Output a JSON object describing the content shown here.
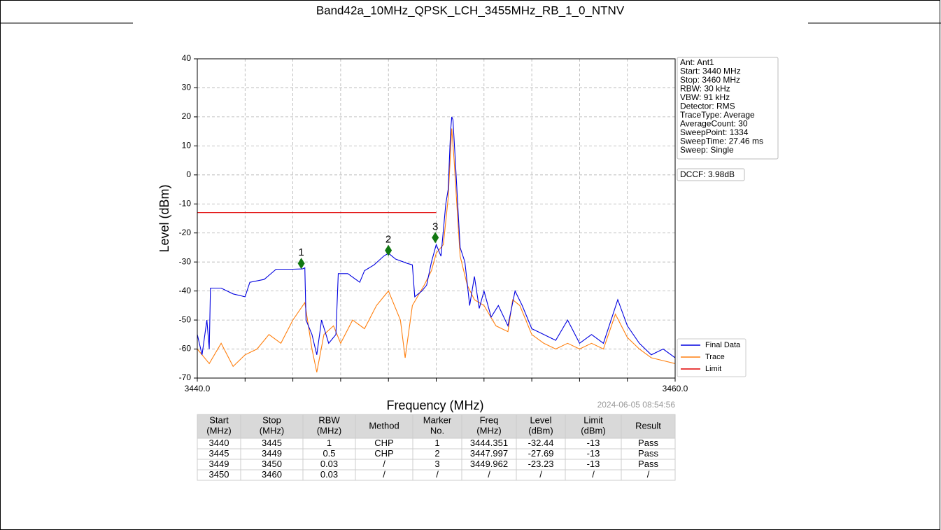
{
  "chart_data": {
    "type": "line",
    "title": "Band42a_10MHz_QPSK_LCH_3455MHz_RB_1_0_NTNV",
    "x_label": "Frequency (MHz)",
    "y_label": "Level (dBm)",
    "timestamp": "2024-06-05 08:54:56",
    "xlim": [
      3440,
      3460
    ],
    "ylim": [
      -70,
      40
    ],
    "xticks": [
      {
        "value": 3440,
        "label": "3440.0"
      },
      {
        "value": 3460,
        "label": "3460.0"
      }
    ],
    "xgrid": [
      3442,
      3444,
      3446,
      3448,
      3450,
      3452,
      3454,
      3456,
      3458
    ],
    "yticks": [
      40,
      30,
      20,
      10,
      0,
      -10,
      -20,
      -30,
      -40,
      -50,
      -60,
      -70
    ],
    "grid": true,
    "legend": "lower right",
    "series": [
      {
        "name": "Final Data",
        "color": "#0000e0",
        "x": [
          3440,
          3440.2,
          3440.4,
          3440.5,
          3440.55,
          3441,
          3441.5,
          3442,
          3442.2,
          3442.8,
          3443.3,
          3444,
          3444.4,
          3444.5,
          3444.55,
          3444.8,
          3445,
          3445.2,
          3445.5,
          3445.8,
          3445.9,
          3446.3,
          3446.8,
          3447,
          3447.4,
          3447.8,
          3448,
          3448.3,
          3448.8,
          3449,
          3449.1,
          3449.4,
          3449.6,
          3449.8,
          3450,
          3450.2,
          3450.4,
          3450.5,
          3450.6,
          3450.65,
          3450.7,
          3450.8,
          3450.9,
          3451,
          3451.2,
          3451.4,
          3451.6,
          3451.8,
          3452,
          3452.3,
          3452.6,
          3453,
          3453.3,
          3453.6,
          3454,
          3454.5,
          3455,
          3455.5,
          3456,
          3456.5,
          3457,
          3457.6,
          3458,
          3458.5,
          3459,
          3459.5,
          3460
        ],
        "values": [
          -55,
          -62,
          -50,
          -60,
          -39,
          -39,
          -41,
          -42,
          -37,
          -36,
          -32.5,
          -32.5,
          -32.4,
          -32,
          -50,
          -55,
          -62,
          -50,
          -58,
          -55,
          -34,
          -34,
          -37,
          -33,
          -31,
          -28,
          -27,
          -29,
          -30.5,
          -31,
          -42,
          -40,
          -38,
          -30,
          -24,
          -28,
          -10,
          -5,
          15,
          20,
          19,
          5,
          -10,
          -25,
          -30,
          -45,
          -35,
          -46,
          -40,
          -49,
          -45,
          -52,
          -40,
          -45,
          -53,
          -55,
          -57,
          -50,
          -58,
          -55,
          -58,
          -43,
          -52,
          -58,
          -62,
          -60,
          -63
        ]
      },
      {
        "name": "Trace",
        "color": "#ff7f0e",
        "x": [
          3440,
          3440.5,
          3441,
          3441.5,
          3442,
          3442.5,
          3443,
          3443.5,
          3444,
          3444.5,
          3444.8,
          3445,
          3445.3,
          3445.7,
          3446,
          3446.5,
          3447,
          3447.5,
          3448,
          3448.5,
          3448.7,
          3449,
          3449.5,
          3449.8,
          3450,
          3450.3,
          3450.5,
          3450.65,
          3450.75,
          3450.9,
          3451,
          3451.3,
          3451.6,
          3452,
          3452.5,
          3453,
          3453.2,
          3453.5,
          3454,
          3454.5,
          3455,
          3455.5,
          3456,
          3456.5,
          3457,
          3457.5,
          3458,
          3458.5,
          3459,
          3459.5,
          3460
        ],
        "values": [
          -60,
          -65,
          -58,
          -66,
          -62,
          -60,
          -55,
          -58,
          -50,
          -44,
          -60,
          -68,
          -55,
          -52,
          -58,
          -50,
          -53,
          -45,
          -40,
          -50,
          -63,
          -45,
          -38,
          -33,
          -27,
          -24,
          -8,
          16,
          5,
          -15,
          -28,
          -38,
          -43,
          -45,
          -52,
          -54,
          -43,
          -45,
          -55,
          -58,
          -60,
          -58,
          -60,
          -58,
          -60,
          -48,
          -56,
          -60,
          -63,
          -64,
          -65
        ]
      },
      {
        "name": "Limit",
        "color": "#e00000",
        "x": [
          3440,
          3450
        ],
        "values": [
          -13,
          -13
        ]
      }
    ],
    "markers": {
      "labels": [
        "1",
        "2",
        "3"
      ],
      "x": [
        3444.351,
        3447.997,
        3449.962
      ],
      "values": [
        -30.5,
        -26,
        -21.6
      ],
      "color": "#117711"
    },
    "info": [
      "Ant: Ant1",
      "Start: 3440 MHz",
      "Stop: 3460 MHz",
      "RBW: 30 kHz",
      "VBW: 91 kHz",
      "Detector: RMS",
      "TraceType: Average",
      "AverageCount: 30",
      "SweepPoint: 1334",
      "SweepTime: 27.46 ms",
      "Sweep: Single"
    ],
    "dccf": "DCCF: 3.98dB"
  },
  "table": {
    "header": [
      [
        "Start",
        "(MHz)"
      ],
      [
        "Stop",
        "(MHz)"
      ],
      [
        "RBW",
        "(MHz)"
      ],
      [
        "Method"
      ],
      [
        "Marker",
        "No."
      ],
      [
        "Freq",
        "(MHz)"
      ],
      [
        "Level",
        "(dBm)"
      ],
      [
        "Limit",
        "(dBm)"
      ],
      [
        "Result"
      ]
    ],
    "rows": [
      [
        "3440",
        "3445",
        "1",
        "CHP",
        "1",
        "3444.351",
        "-32.44",
        "-13",
        "Pass"
      ],
      [
        "3445",
        "3449",
        "0.5",
        "CHP",
        "2",
        "3447.997",
        "-27.69",
        "-13",
        "Pass"
      ],
      [
        "3449",
        "3450",
        "0.03",
        "/",
        "3",
        "3449.962",
        "-23.23",
        "-13",
        "Pass"
      ],
      [
        "3450",
        "3460",
        "0.03",
        "/",
        "/",
        "/",
        "/",
        "/",
        "/"
      ]
    ]
  }
}
